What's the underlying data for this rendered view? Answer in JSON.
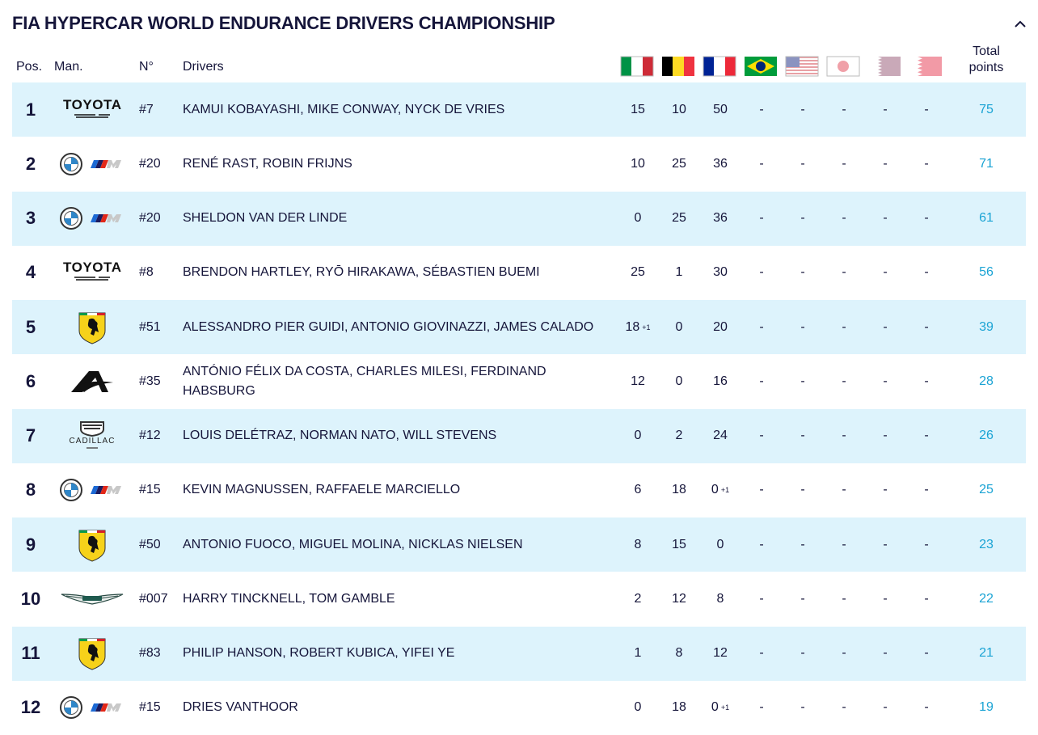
{
  "title": "FIA HYPERCAR WORLD ENDURANCE DRIVERS CHAMPIONSHIP",
  "header": {
    "pos": "Pos.",
    "man": "Man.",
    "num": "N°",
    "drivers": "Drivers",
    "total": "Total points"
  },
  "rows": [
    {
      "pos": 1,
      "man": "TOYOTA",
      "num": "#7",
      "drivers": "KAMUI KOBAYASHI, MIKE CONWAY, NYCK DE VRIES",
      "points": [
        15,
        10,
        50,
        "-",
        "-",
        "-",
        "-",
        "-"
      ],
      "total": 75
    },
    {
      "pos": 2,
      "num": "#20",
      "drivers": "RENÉ RAST, ROBIN FRIJNS",
      "points": [
        10,
        25,
        36,
        "-",
        "-",
        "-",
        "-",
        "-"
      ],
      "total": 71
    },
    {
      "pos": 3,
      "num": "#20",
      "drivers": "SHELDON VAN DER LINDE",
      "points": [
        0,
        25,
        36,
        "-",
        "-",
        "-",
        "-",
        "-"
      ],
      "total": 61
    },
    {
      "pos": 4,
      "man": "TOYOTA",
      "num": "#8",
      "drivers": "BRENDON HARTLEY, RYŌ HIRAKAWA, SÉBASTIEN BUEMI",
      "points": [
        25,
        1,
        30,
        "-",
        "-",
        "-",
        "-",
        "-"
      ],
      "total": 56
    },
    {
      "pos": 5,
      "num": "#51",
      "drivers": "ALESSANDRO PIER GUIDI, ANTONIO GIOVINAZZI, JAMES CALADO",
      "points": [
        {
          "value": 18,
          "bonus": "+1"
        },
        0,
        20,
        "-",
        "-",
        "-",
        "-",
        "-"
      ],
      "total": 39
    },
    {
      "pos": 6,
      "num": "#35",
      "drivers": "ANTÓNIO FÉLIX DA COSTA, CHARLES MILESI, FERDINAND HABSBURG",
      "points": [
        12,
        0,
        16,
        "-",
        "-",
        "-",
        "-",
        "-"
      ],
      "total": 28
    },
    {
      "pos": 7,
      "man": "CADILLAC",
      "num": "#12",
      "drivers": "LOUIS DELÉTRAZ, NORMAN NATO, WILL STEVENS",
      "points": [
        0,
        2,
        24,
        "-",
        "-",
        "-",
        "-",
        "-"
      ],
      "total": 26
    },
    {
      "pos": 8,
      "num": "#15",
      "drivers": "KEVIN MAGNUSSEN, RAFFAELE MARCIELLO",
      "points": [
        6,
        18,
        {
          "value": 0,
          "bonus": "+1"
        },
        "-",
        "-",
        "-",
        "-",
        "-"
      ],
      "total": 25
    },
    {
      "pos": 9,
      "num": "#50",
      "drivers": "ANTONIO FUOCO, MIGUEL MOLINA, NICKLAS NIELSEN",
      "points": [
        8,
        15,
        0,
        "-",
        "-",
        "-",
        "-",
        "-"
      ],
      "total": 23
    },
    {
      "pos": 10,
      "num": "#007",
      "drivers": "HARRY TINCKNELL, TOM GAMBLE",
      "points": [
        2,
        12,
        8,
        "-",
        "-",
        "-",
        "-",
        "-"
      ],
      "total": 22
    },
    {
      "pos": 11,
      "num": "#83",
      "drivers": "PHILIP HANSON, ROBERT KUBICA, YIFEI YE",
      "points": [
        1,
        8,
        12,
        "-",
        "-",
        "-",
        "-",
        "-"
      ],
      "total": 21
    },
    {
      "pos": 12,
      "num": "#15",
      "drivers": "DRIES VANTHOOR",
      "points": [
        0,
        18,
        {
          "value": 0,
          "bonus": "+1"
        },
        "-",
        "-",
        "-",
        "-",
        "-"
      ],
      "total": 19
    }
  ]
}
